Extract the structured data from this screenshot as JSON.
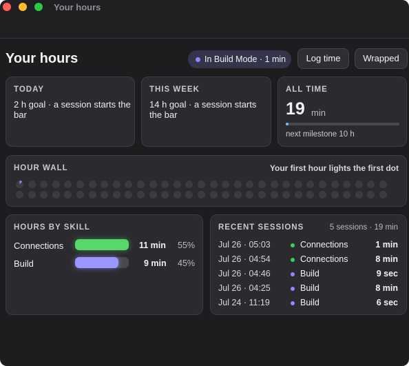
{
  "window": {
    "title": "Your hours"
  },
  "header": {
    "title": "Your hours",
    "status": "In Build Mode · 1 min",
    "buttons": [
      "Log time",
      "Wrapped"
    ]
  },
  "cards": {
    "today": {
      "label": "TODAY",
      "text": "2 h goal · a session starts the bar"
    },
    "week": {
      "label": "THIS WEEK",
      "text": "14 h goal · a session starts the bar"
    },
    "all_time": {
      "label": "ALL TIME",
      "value": "19",
      "unit": "min",
      "note": "next milestone 10 h"
    }
  },
  "hour_wall": {
    "label": "HOUR WALL",
    "note": "Your first hour lights the first dot"
  },
  "skills": {
    "label": "HOURS BY SKILL",
    "rows": [
      {
        "name": "Connections",
        "time": "11 min",
        "share": "55%"
      },
      {
        "name": "Build",
        "time": "9 min",
        "share": "45%"
      }
    ]
  },
  "sessions": {
    "label": "RECENT SESSIONS",
    "summary": "5 sessions · 19 min",
    "rows": [
      {
        "when": "Jul 26 · 05:03",
        "skill": "Connections",
        "duration": "1 min"
      },
      {
        "when": "Jul 26 · 04:54",
        "skill": "Connections",
        "duration": "8 min"
      },
      {
        "when": "Jul 26 · 04:46",
        "skill": "Build",
        "duration": "9 sec"
      },
      {
        "when": "Jul 26 · 04:25",
        "skill": "Build",
        "duration": "8 min"
      },
      {
        "when": "Jul 24 · 11:19",
        "skill": "Build",
        "duration": "6 sec"
      }
    ]
  }
}
